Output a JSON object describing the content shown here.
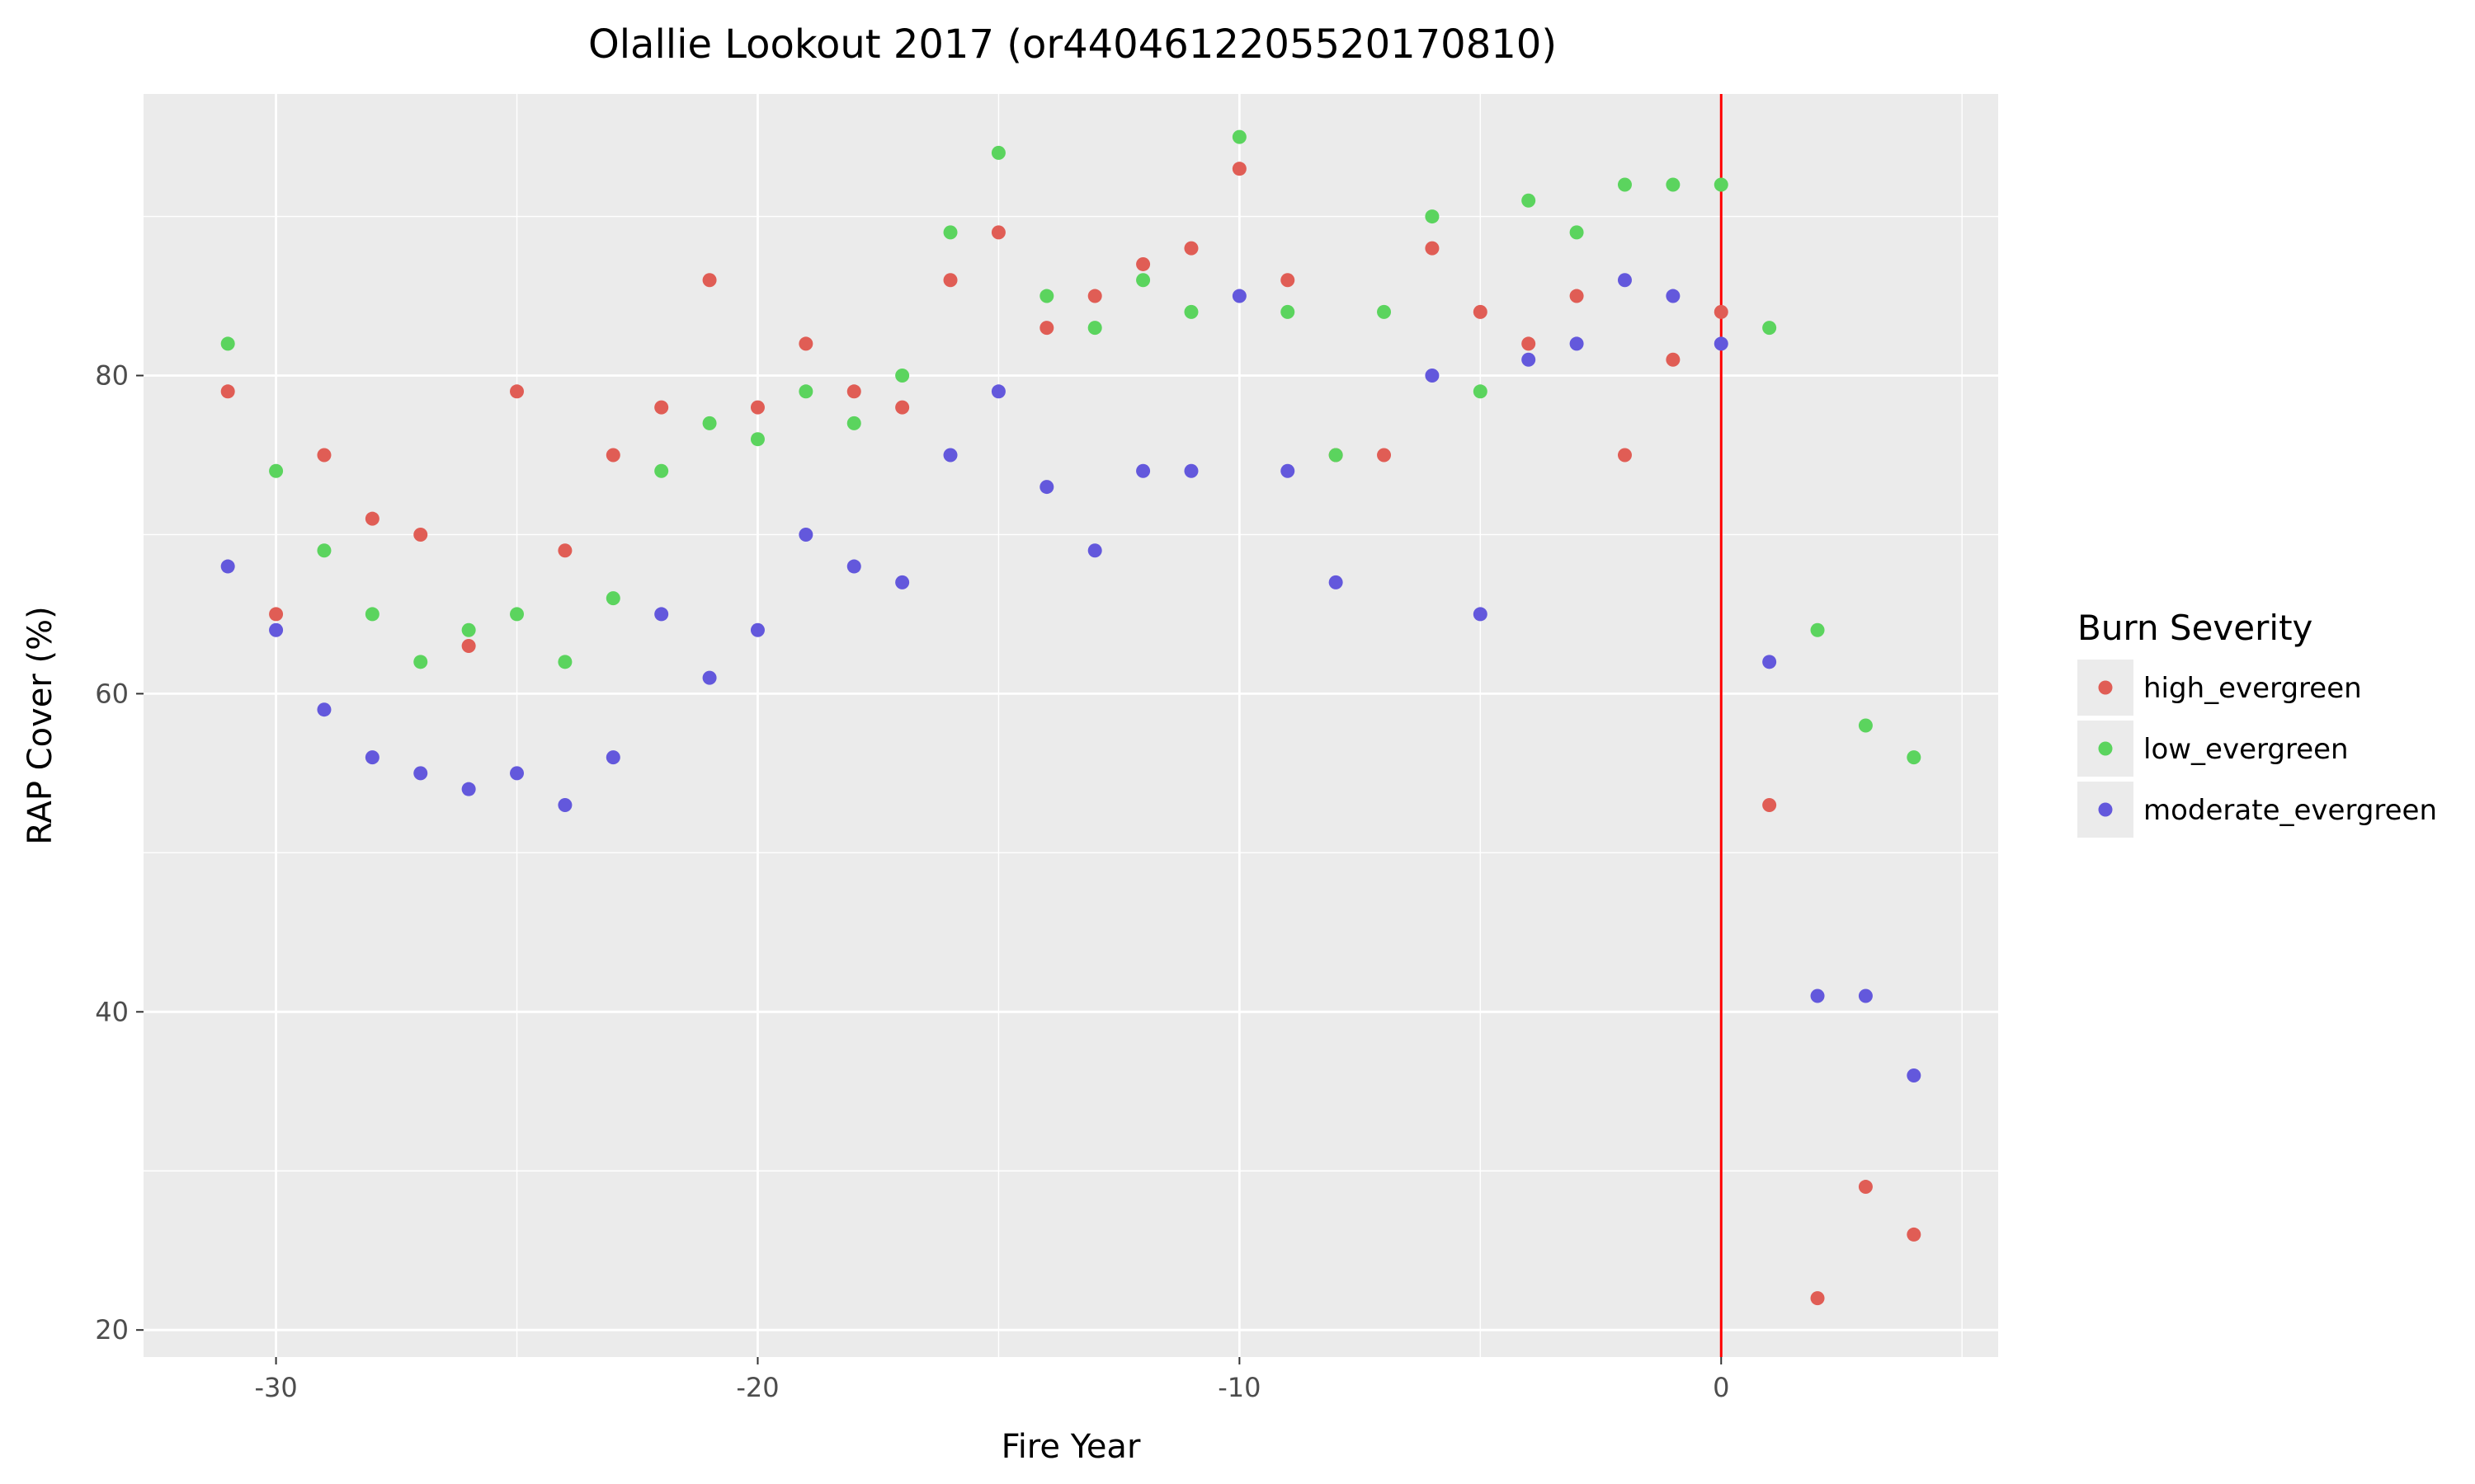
{
  "chart_data": {
    "type": "scatter",
    "title": "Olallie Lookout 2017 (or4404612205520170810)",
    "xlabel": "Fire Year",
    "ylabel": "RAP Cover (%)",
    "xlim": [
      -32.75,
      5.75
    ],
    "ylim": [
      18.3,
      97.7
    ],
    "x_ticks": [
      -30,
      -20,
      -10,
      0
    ],
    "y_ticks": [
      20,
      40,
      60,
      80
    ],
    "grid": true,
    "vline": {
      "x": 0,
      "color": "#ff0000"
    },
    "legend": {
      "title": "Burn Severity",
      "placement": "right"
    },
    "series": [
      {
        "name": "high_evergreen",
        "color": "#e05d55",
        "x": [
          -31,
          -30,
          -29,
          -28,
          -27,
          -26,
          -25,
          -24,
          -23,
          -22,
          -21,
          -20,
          -19,
          -18,
          -17,
          -16,
          -15,
          -14,
          -13,
          -12,
          -11,
          -10,
          -9,
          -8,
          -7,
          -6,
          -5,
          -4,
          -3,
          -2,
          -1,
          0,
          1,
          2,
          3,
          4
        ],
        "y": [
          79,
          65,
          75,
          71,
          70,
          63,
          79,
          69,
          75,
          78,
          86,
          78,
          82,
          79,
          78,
          86,
          89,
          83,
          85,
          87,
          88,
          93,
          86,
          75,
          75,
          88,
          84,
          82,
          85,
          75,
          81,
          84,
          53,
          22,
          29,
          26
        ]
      },
      {
        "name": "low_evergreen",
        "color": "#5bd45e",
        "x": [
          -31,
          -30,
          -29,
          -28,
          -27,
          -26,
          -25,
          -24,
          -23,
          -22,
          -21,
          -20,
          -19,
          -18,
          -17,
          -16,
          -15,
          -14,
          -13,
          -12,
          -11,
          -10,
          -9,
          -8,
          -7,
          -6,
          -5,
          -4,
          -3,
          -2,
          -1,
          0,
          1,
          2,
          3,
          4
        ],
        "y": [
          82,
          74,
          69,
          65,
          62,
          64,
          65,
          62,
          66,
          74,
          77,
          76,
          79,
          77,
          80,
          89,
          94,
          85,
          83,
          86,
          84,
          95,
          84,
          75,
          84,
          90,
          79,
          91,
          89,
          92,
          92,
          92,
          83,
          64,
          58,
          56
        ]
      },
      {
        "name": "moderate_evergreen",
        "color": "#6358dc",
        "x": [
          -31,
          -30,
          -29,
          -28,
          -27,
          -26,
          -25,
          -24,
          -23,
          -22,
          -21,
          -20,
          -19,
          -18,
          -17,
          -16,
          -15,
          -14,
          -13,
          -12,
          -11,
          -10,
          -9,
          -8,
          -6,
          -5,
          -4,
          -3,
          -2,
          -1,
          0,
          1,
          2,
          3,
          4
        ],
        "y": [
          68,
          64,
          59,
          56,
          55,
          54,
          55,
          53,
          56,
          65,
          61,
          64,
          70,
          68,
          67,
          75,
          79,
          73,
          69,
          74,
          74,
          85,
          74,
          67,
          80,
          65,
          81,
          82,
          86,
          85,
          82,
          62,
          41,
          41,
          36
        ]
      }
    ]
  }
}
